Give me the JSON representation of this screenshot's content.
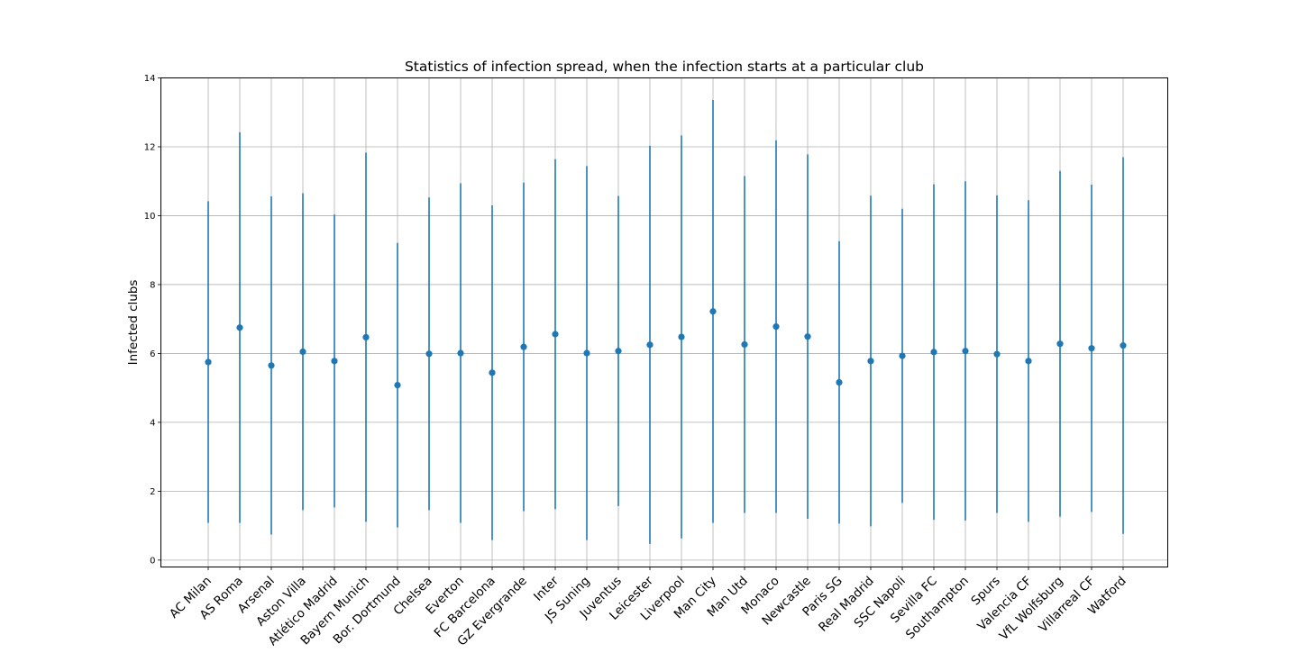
{
  "chart_data": {
    "type": "scatter",
    "title": "Statistics of infection spread, when the infection starts at a particular club",
    "xlabel": "",
    "ylabel": "Infected clubs",
    "ylim": [
      -0.2,
      14
    ],
    "yticks": [
      "0",
      "2",
      "4",
      "6",
      "8",
      "10",
      "12",
      "14"
    ],
    "grid": true,
    "error_bars": true,
    "colors": {
      "series": "#1f77b4",
      "grid": "#b0b0b0",
      "axes": "#000000"
    },
    "categories": [
      "AC Milan",
      "AS Roma",
      "Arsenal",
      "Aston Villa",
      "Atlético Madrid",
      "Bayern Munich",
      "Bor. Dortmund",
      "Chelsea",
      "Everton",
      "FC Barcelona",
      "GZ Evergrande",
      "Inter",
      "JS Suning",
      "Juventus",
      "Leicester",
      "Liverpool",
      "Man City",
      "Man Utd",
      "Monaco",
      "Newcastle",
      "Paris SG",
      "Real Madrid",
      "SSC Napoli",
      "Sevilla FC",
      "Southampton",
      "Spurs",
      "Valencia CF",
      "VfL Wolfsburg",
      "Villarreal CF",
      "Watford"
    ],
    "series": [
      {
        "values": [
          5.75,
          6.75,
          5.65,
          6.05,
          5.78,
          6.47,
          5.08,
          5.99,
          6.01,
          5.44,
          6.19,
          6.56,
          6.01,
          6.07,
          6.25,
          6.48,
          7.22,
          6.26,
          6.78,
          6.49,
          5.16,
          5.78,
          5.93,
          6.04,
          6.07,
          5.98,
          5.78,
          6.28,
          6.15,
          6.23
        ],
        "lower": [
          1.08,
          1.08,
          0.74,
          1.45,
          1.53,
          1.11,
          0.95,
          1.45,
          1.08,
          0.58,
          1.42,
          1.48,
          0.58,
          1.57,
          0.47,
          0.63,
          1.08,
          1.37,
          1.37,
          1.2,
          1.06,
          0.98,
          1.66,
          1.17,
          1.15,
          1.37,
          1.11,
          1.26,
          1.4,
          0.76
        ],
        "upper": [
          10.42,
          12.42,
          10.56,
          10.65,
          10.03,
          11.83,
          9.21,
          10.53,
          10.94,
          10.3,
          10.96,
          11.64,
          11.44,
          10.57,
          12.03,
          12.33,
          13.36,
          11.15,
          12.19,
          11.78,
          9.26,
          10.58,
          10.2,
          10.91,
          11.0,
          10.59,
          10.45,
          11.3,
          10.9,
          11.7
        ]
      }
    ]
  }
}
